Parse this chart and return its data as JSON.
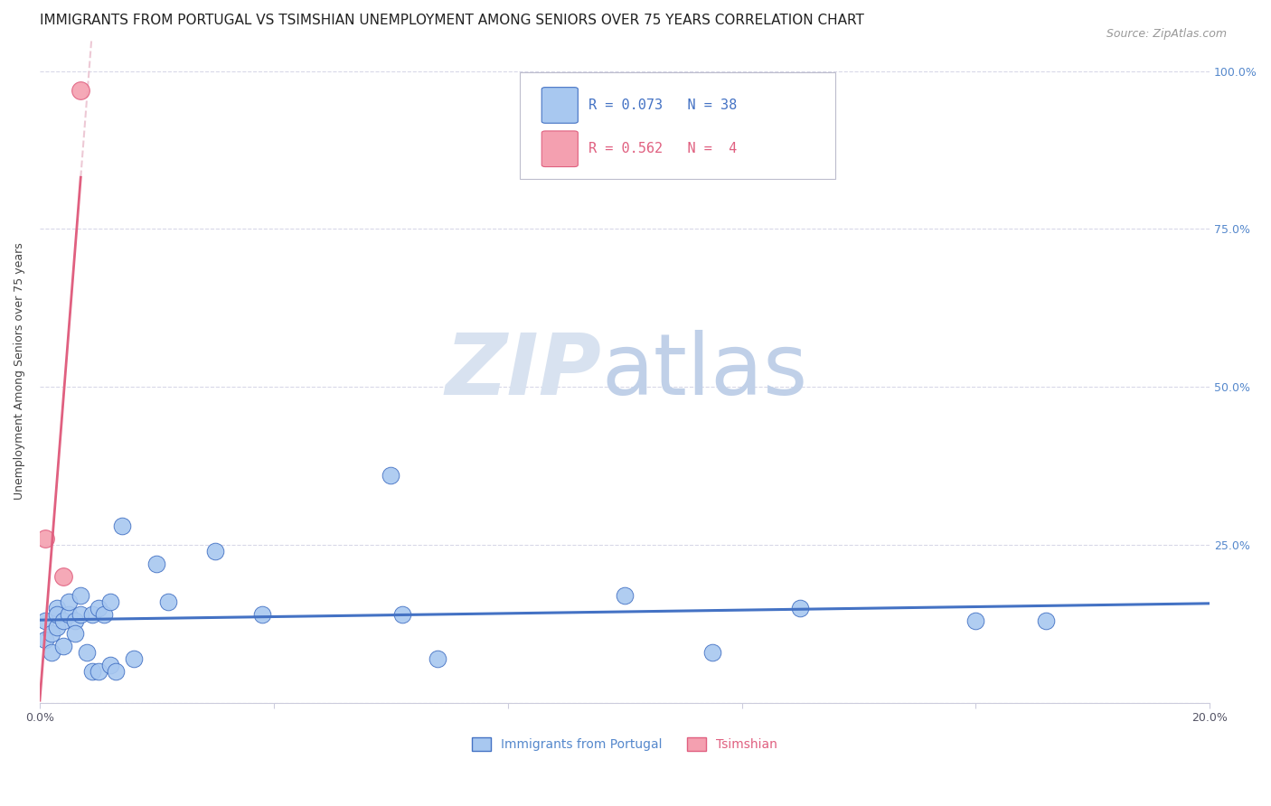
{
  "title": "IMMIGRANTS FROM PORTUGAL VS TSIMSHIAN UNEMPLOYMENT AMONG SENIORS OVER 75 YEARS CORRELATION CHART",
  "source": "Source: ZipAtlas.com",
  "ylabel": "Unemployment Among Seniors over 75 years",
  "xlim": [
    0.0,
    0.2
  ],
  "ylim": [
    0.0,
    1.05
  ],
  "xticks": [
    0.0,
    0.04,
    0.08,
    0.12,
    0.16,
    0.2
  ],
  "yticks": [
    0.0,
    0.25,
    0.5,
    0.75,
    1.0
  ],
  "blue_scatter_x": [
    0.001,
    0.001,
    0.002,
    0.002,
    0.003,
    0.003,
    0.003,
    0.004,
    0.004,
    0.005,
    0.005,
    0.006,
    0.006,
    0.007,
    0.007,
    0.008,
    0.009,
    0.009,
    0.01,
    0.01,
    0.011,
    0.012,
    0.012,
    0.013,
    0.014,
    0.016,
    0.02,
    0.022,
    0.03,
    0.038,
    0.06,
    0.062,
    0.068,
    0.1,
    0.115,
    0.13,
    0.16,
    0.172
  ],
  "blue_scatter_y": [
    0.1,
    0.13,
    0.11,
    0.08,
    0.12,
    0.15,
    0.14,
    0.09,
    0.13,
    0.14,
    0.16,
    0.13,
    0.11,
    0.14,
    0.17,
    0.08,
    0.14,
    0.05,
    0.15,
    0.05,
    0.14,
    0.16,
    0.06,
    0.05,
    0.28,
    0.07,
    0.22,
    0.16,
    0.24,
    0.14,
    0.36,
    0.14,
    0.07,
    0.17,
    0.08,
    0.15,
    0.13,
    0.13
  ],
  "pink_scatter_x": [
    0.001,
    0.004,
    0.007
  ],
  "pink_scatter_y": [
    0.26,
    0.2,
    0.97
  ],
  "blue_color": "#a8c8f0",
  "pink_color": "#f4a0b0",
  "blue_line_color": "#4472c4",
  "pink_line_color": "#e06080",
  "pink_dashed_color": "#e8b8c8",
  "legend_blue_text_color": "#4472c4",
  "legend_pink_text_color": "#e06080",
  "background_color": "#ffffff",
  "grid_color": "#d8d8e8",
  "axis_color": "#ccccdd",
  "title_fontsize": 11,
  "source_fontsize": 9,
  "ylabel_fontsize": 9,
  "tick_fontsize": 9,
  "legend_fontsize": 11
}
